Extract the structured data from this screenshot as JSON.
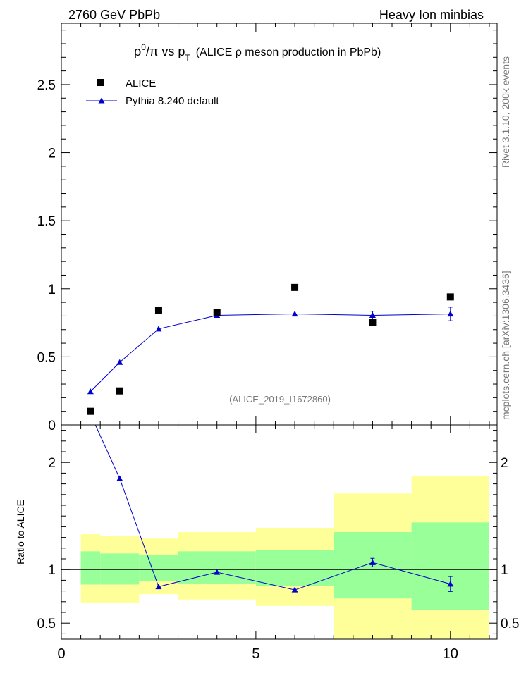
{
  "header": {
    "left": "2760 GeV PbPb",
    "right": "Heavy Ion minbias"
  },
  "side_labels": {
    "rivet": "Rivet 3.1.10,  200k events",
    "mcplots": "mcplots.cern.ch [arXiv:1306.3436]"
  },
  "chart_data": [
    {
      "type": "scatter",
      "title": "ρ⁰/π vs p_T (ALICE ρ meson production in PbPb)",
      "title_parts": {
        "rho": "ρ",
        "sup": "0",
        "mid": "/π vs p",
        "sub": "T",
        "rest": "(ALICE ρ meson production in PbPb)"
      },
      "annotation": "(ALICE_2019_I1672860)",
      "xlim": [
        0,
        11.2
      ],
      "ylim": [
        0,
        2.95
      ],
      "yticks": [
        0,
        0.5,
        1,
        1.5,
        2,
        2.5
      ],
      "ytick_labels": [
        "0",
        "0.5",
        "1",
        "1.5",
        "2",
        "2.5"
      ],
      "legend_position": "top-left",
      "series": [
        {
          "name": "ALICE",
          "marker": "square",
          "color": "#000000",
          "x": [
            0.75,
            1.5,
            2.5,
            4.0,
            6.0,
            8.0,
            10.0
          ],
          "y": [
            0.1,
            0.25,
            0.84,
            0.825,
            1.01,
            0.755,
            0.94
          ]
        },
        {
          "name": "Pythia 8.240 default",
          "marker": "triangle",
          "color": "#0000cc",
          "x": [
            0.75,
            1.5,
            2.5,
            4.0,
            6.0,
            8.0,
            10.0
          ],
          "y": [
            0.245,
            0.46,
            0.705,
            0.805,
            0.815,
            0.805,
            0.815
          ],
          "yerr": [
            0,
            0,
            0,
            0,
            0,
            0.03,
            0.05
          ]
        }
      ]
    },
    {
      "type": "line",
      "ylabel": "Ratio to ALICE",
      "xlim": [
        0,
        11.2
      ],
      "ylim": [
        0.35,
        2.35
      ],
      "xticks": [
        0,
        5,
        10
      ],
      "xtick_labels": [
        "0",
        "5",
        "10"
      ],
      "yticks": [
        0.5,
        1,
        2
      ],
      "ytick_labels": [
        "0.5",
        "1",
        "2"
      ],
      "reference_line": 1,
      "bands": [
        {
          "x0": 0.5,
          "x1": 1.0,
          "green": [
            0.86,
            1.17
          ],
          "yellow": [
            0.69,
            1.33
          ]
        },
        {
          "x0": 1.0,
          "x1": 2.0,
          "green": [
            0.86,
            1.15
          ],
          "yellow": [
            0.69,
            1.31
          ]
        },
        {
          "x0": 2.0,
          "x1": 3.0,
          "green": [
            0.89,
            1.14
          ],
          "yellow": [
            0.77,
            1.29
          ]
        },
        {
          "x0": 3.0,
          "x1": 5.0,
          "green": [
            0.87,
            1.17
          ],
          "yellow": [
            0.72,
            1.35
          ]
        },
        {
          "x0": 5.0,
          "x1": 7.0,
          "green": [
            0.85,
            1.18
          ],
          "yellow": [
            0.66,
            1.39
          ]
        },
        {
          "x0": 7.0,
          "x1": 9.0,
          "green": [
            0.73,
            1.35
          ],
          "yellow": [
            0.35,
            1.71
          ]
        },
        {
          "x0": 9.0,
          "x1": 11.0,
          "green": [
            0.62,
            1.44
          ],
          "yellow": [
            0.35,
            1.87
          ]
        }
      ],
      "series": [
        {
          "name": "Pythia 8.240 default",
          "color": "#0000cc",
          "x": [
            0.75,
            1.5,
            2.5,
            4.0,
            6.0,
            8.0,
            10.0
          ],
          "y": [
            2.45,
            1.85,
            0.84,
            0.975,
            0.81,
            1.065,
            0.865
          ],
          "yerr": [
            0,
            0,
            0,
            0,
            0,
            0.04,
            0.07
          ]
        }
      ]
    }
  ]
}
